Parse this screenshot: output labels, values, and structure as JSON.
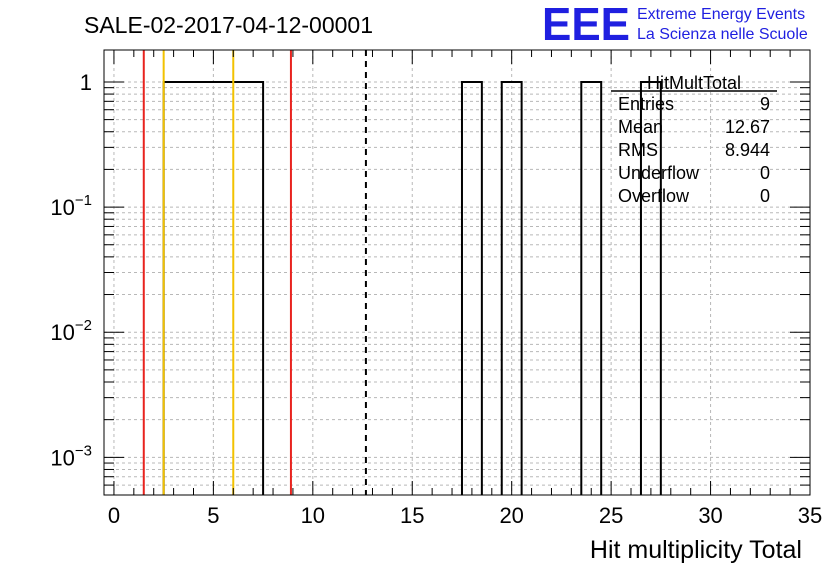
{
  "chart_data": {
    "type": "bar",
    "title": "SALE-02-2017-04-12-00001",
    "xlabel": "Hit multiplicity Total",
    "ylabel": "",
    "log_y": true,
    "xlim": [
      -0.5,
      35
    ],
    "ylim": [
      0.0005,
      1.8
    ],
    "grid": true,
    "bin_width": 1,
    "histogram": {
      "bins": [
        {
          "low": 2.5,
          "high": 7.5,
          "value": 1
        },
        {
          "low": 17.5,
          "high": 18.5,
          "value": 1
        },
        {
          "low": 19.5,
          "high": 20.5,
          "value": 1
        },
        {
          "low": 23.5,
          "high": 24.5,
          "value": 1
        },
        {
          "low": 26.5,
          "high": 27.5,
          "value": 1
        }
      ]
    },
    "x_ticks": [
      "0",
      "5",
      "10",
      "15",
      "20",
      "25",
      "30",
      "35"
    ],
    "x_tick_values": [
      0,
      5,
      10,
      15,
      20,
      25,
      30,
      35
    ],
    "y_ticks": [
      {
        "value": 1,
        "base": "1",
        "exp": ""
      },
      {
        "value": 0.1,
        "base": "10",
        "exp": "−1"
      },
      {
        "value": 0.01,
        "base": "10",
        "exp": "−2"
      },
      {
        "value": 0.001,
        "base": "10",
        "exp": "−3"
      }
    ],
    "vertical_lines": [
      {
        "x": 1.5,
        "color": "#e8231e",
        "style": "solid"
      },
      {
        "x": 2.5,
        "color": "#f2c200",
        "style": "solid"
      },
      {
        "x": 6.0,
        "color": "#f2c200",
        "style": "solid"
      },
      {
        "x": 8.9,
        "color": "#e8231e",
        "style": "solid"
      },
      {
        "x": 12.67,
        "color": "#000000",
        "style": "dashed"
      }
    ],
    "stats": {
      "name": "HitMultTotal",
      "rows": [
        {
          "label": "Entries",
          "value": "9"
        },
        {
          "label": "Mean",
          "value": "12.67"
        },
        {
          "label": "RMS",
          "value": "8.944"
        },
        {
          "label": "Underflow",
          "value": "0"
        },
        {
          "label": "Overflow",
          "value": "0"
        }
      ]
    }
  },
  "logo": {
    "mark": "EEE",
    "line1": "Extreme Energy Events",
    "line2": "La Scienza nelle Scuole",
    "color": "#1f1fe0"
  }
}
